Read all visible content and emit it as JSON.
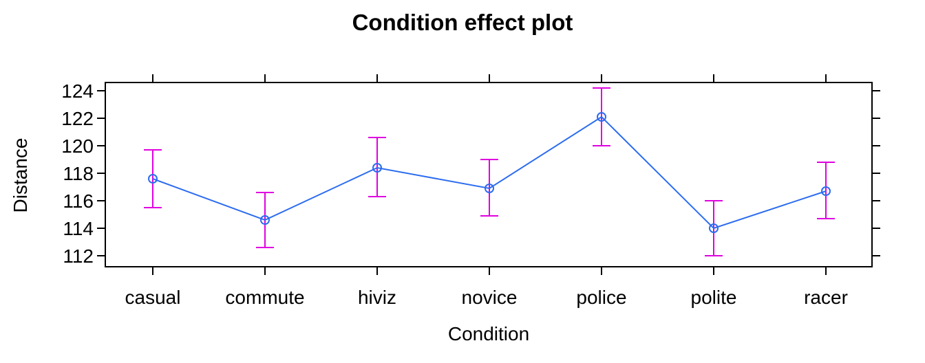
{
  "chart_data": {
    "type": "line",
    "title": "Condition effect plot",
    "xlabel": "Condition",
    "ylabel": "Distance",
    "categories": [
      "casual",
      "commute",
      "hiviz",
      "novice",
      "police",
      "polite",
      "racer"
    ],
    "series": [
      {
        "values": [
          117.6,
          114.6,
          118.4,
          116.9,
          122.1,
          114.0,
          116.7
        ],
        "lower": [
          115.5,
          112.6,
          116.3,
          114.9,
          120.0,
          112.0,
          114.7
        ],
        "upper": [
          119.7,
          116.6,
          120.6,
          119.0,
          124.2,
          116.0,
          118.8
        ]
      }
    ],
    "yticks": [
      112,
      114,
      116,
      118,
      120,
      122,
      124
    ],
    "ylim": [
      111.2,
      124.6
    ],
    "grid": false,
    "legend": "none",
    "colors": {
      "line": "#2b6cf0",
      "errorbar": "#e000e0",
      "axis": "#000000"
    }
  }
}
